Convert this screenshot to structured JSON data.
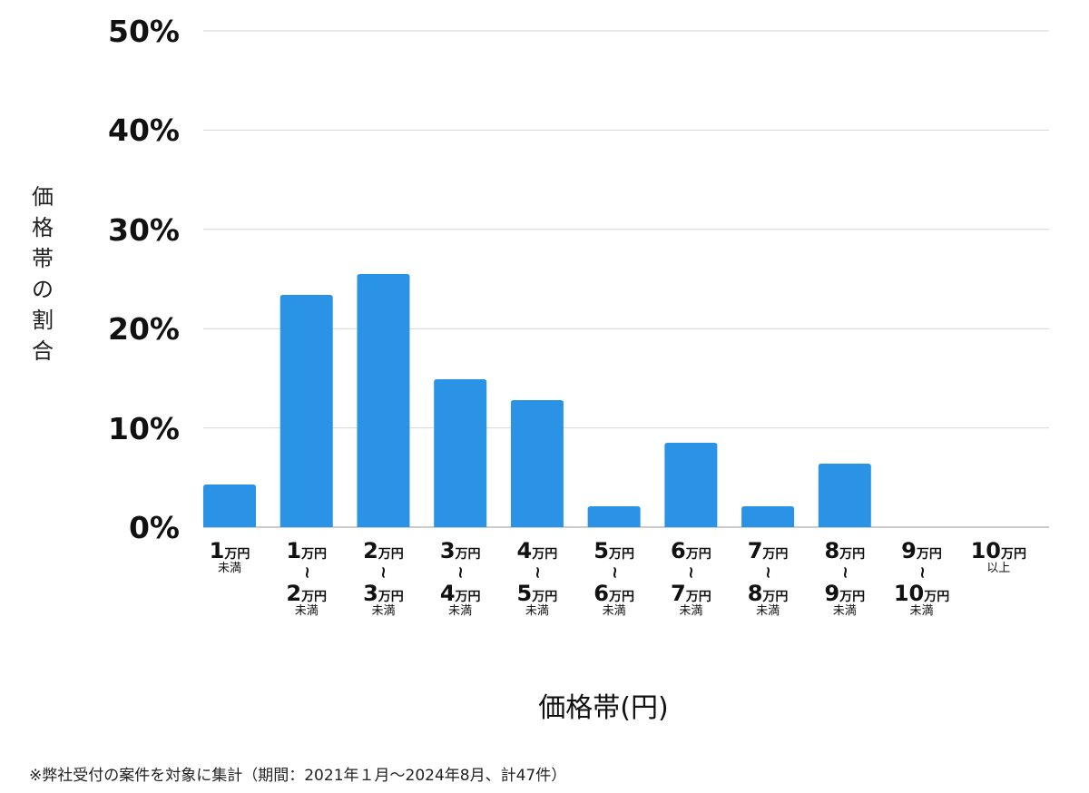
{
  "chart_data": {
    "type": "bar",
    "ylabel": "価格帯の割合",
    "xlabel": "価格帯(円)",
    "ylim": [
      0,
      50
    ],
    "yticks": [
      "0%",
      "10%",
      "20%",
      "30%",
      "40%",
      "50%"
    ],
    "grid": true,
    "bar_color": "#2a93e6",
    "categories": [
      {
        "top": "1",
        "top_unit": "万円",
        "tilde": "",
        "bottom": "",
        "bottom_unit": "",
        "note": "未満"
      },
      {
        "top": "1",
        "top_unit": "万円",
        "tilde": "~",
        "bottom": "2",
        "bottom_unit": "万円",
        "note": "未満"
      },
      {
        "top": "2",
        "top_unit": "万円",
        "tilde": "~",
        "bottom": "3",
        "bottom_unit": "万円",
        "note": "未満"
      },
      {
        "top": "3",
        "top_unit": "万円",
        "tilde": "~",
        "bottom": "4",
        "bottom_unit": "万円",
        "note": "未満"
      },
      {
        "top": "4",
        "top_unit": "万円",
        "tilde": "~",
        "bottom": "5",
        "bottom_unit": "万円",
        "note": "未満"
      },
      {
        "top": "5",
        "top_unit": "万円",
        "tilde": "~",
        "bottom": "6",
        "bottom_unit": "万円",
        "note": "未満"
      },
      {
        "top": "6",
        "top_unit": "万円",
        "tilde": "~",
        "bottom": "7",
        "bottom_unit": "万円",
        "note": "未満"
      },
      {
        "top": "7",
        "top_unit": "万円",
        "tilde": "~",
        "bottom": "8",
        "bottom_unit": "万円",
        "note": "未満"
      },
      {
        "top": "8",
        "top_unit": "万円",
        "tilde": "~",
        "bottom": "9",
        "bottom_unit": "万円",
        "note": "未満"
      },
      {
        "top": "9",
        "top_unit": "万円",
        "tilde": "~",
        "bottom": "10",
        "bottom_unit": "万円",
        "note": "未満"
      },
      {
        "top": "10",
        "top_unit": "万円",
        "tilde": "",
        "bottom": "",
        "bottom_unit": "",
        "note": "以上"
      }
    ],
    "values": [
      4.3,
      23.4,
      25.5,
      14.9,
      12.8,
      2.1,
      8.5,
      2.1,
      6.4,
      0,
      0
    ]
  },
  "footnote": "※弊社受付の案件を対象に集計（期間：2021年１月〜2024年8月、計47件）"
}
